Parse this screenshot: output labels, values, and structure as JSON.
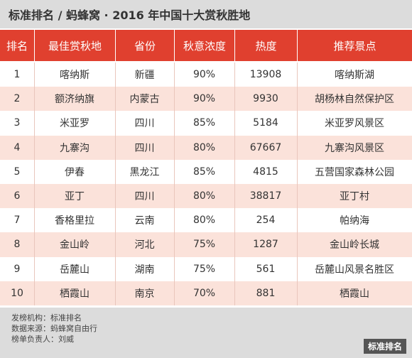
{
  "header": {
    "title": "标准排名 / 蚂蜂窝 · 2016 年中国十大赏秋胜地"
  },
  "table": {
    "columns": [
      "排名",
      "最佳赏秋地",
      "省份",
      "秋意浓度",
      "热度",
      "推荐景点"
    ],
    "rows": [
      [
        "1",
        "喀纳斯",
        "新疆",
        "90%",
        "13908",
        "喀纳斯湖"
      ],
      [
        "2",
        "额济纳旗",
        "内蒙古",
        "90%",
        "9930",
        "胡杨林自然保护区"
      ],
      [
        "3",
        "米亚罗",
        "四川",
        "85%",
        "5184",
        "米亚罗风景区"
      ],
      [
        "4",
        "九寨沟",
        "四川",
        "80%",
        "67667",
        "九寨沟风景区"
      ],
      [
        "5",
        "伊春",
        "黑龙江",
        "85%",
        "4815",
        "五营国家森林公园"
      ],
      [
        "6",
        "亚丁",
        "四川",
        "80%",
        "38817",
        "亚丁村"
      ],
      [
        "7",
        "香格里拉",
        "云南",
        "80%",
        "254",
        "帕纳海"
      ],
      [
        "8",
        "金山岭",
        "河北",
        "75%",
        "1287",
        "金山岭长城"
      ],
      [
        "9",
        "岳麓山",
        "湖南",
        "75%",
        "561",
        "岳麓山风景名胜区"
      ],
      [
        "10",
        "栖霞山",
        "南京",
        "70%",
        "881",
        "栖霞山"
      ]
    ]
  },
  "footer": {
    "lines": [
      "发榜机构：标准排名",
      "数据来源：蚂蜂窝自由行",
      "榜单负责人：刘威"
    ],
    "logo": "标准排名"
  }
}
